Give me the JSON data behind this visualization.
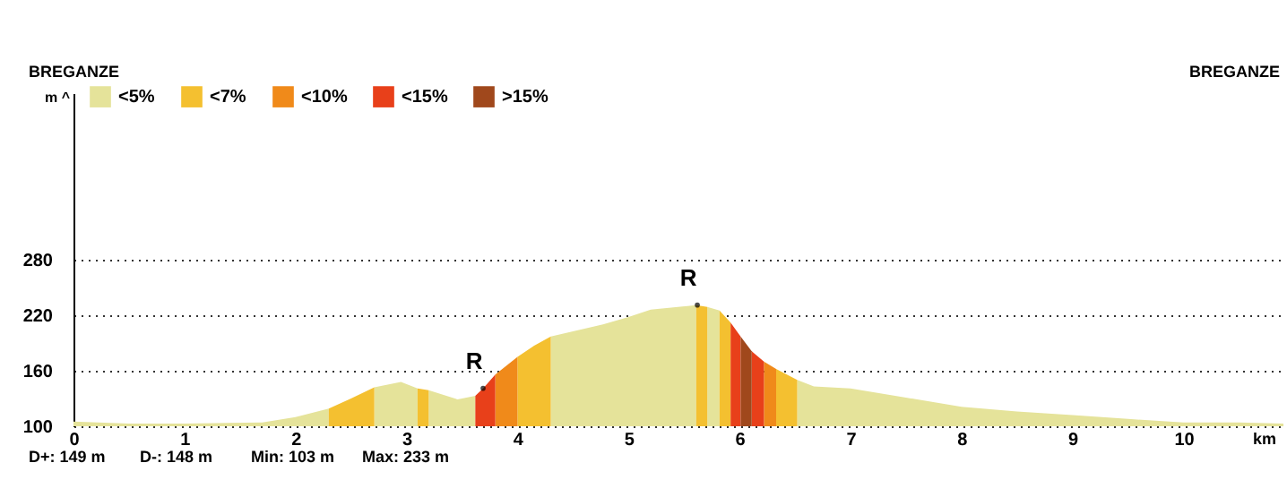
{
  "chart_data": {
    "type": "area",
    "title": "BREGANZE",
    "xlabel": "km",
    "ylabel": "m ^",
    "xlim": [
      0,
      10.9
    ],
    "xticks": [
      0,
      1,
      2,
      3,
      4,
      5,
      6,
      7,
      8,
      9,
      10
    ],
    "ylim": [
      100,
      460
    ],
    "yticks": [
      100,
      160,
      220,
      280
    ],
    "grid": "y",
    "legend": "top left",
    "series": [
      {
        "name": "<5%",
        "color": "#e5e39a",
        "x": [
          0,
          0.5,
          1,
          1.7,
          2.0,
          2.3,
          2.5,
          2.71,
          2.95,
          3.1,
          3.15,
          3.2,
          3.46,
          3.62,
          4.0,
          4.3,
          4.77,
          5.0,
          5.2,
          5.61,
          5.66,
          5.71,
          5.82,
          6.2,
          6.52,
          6.67,
          7,
          7.5,
          8,
          8.5,
          9,
          9.5,
          10,
          10.5,
          10.9
        ],
        "values": [
          105,
          103,
          103,
          104,
          110,
          119,
          null,
          142,
          148,
          141,
          null,
          139,
          129,
          133,
          null,
          197,
          210,
          218,
          226,
          231,
          null,
          229,
          225,
          null,
          150,
          143,
          141,
          131,
          121,
          116,
          112,
          108,
          104,
          104,
          103
        ]
      },
      {
        "name": "<7%",
        "color": "#f4c030",
        "x": [
          2.3,
          2.5,
          2.71,
          2.9,
          3.1,
          3.2,
          3.6,
          4.0,
          4.15,
          4.3,
          5.0,
          5.61,
          5.71,
          5.76,
          5.82,
          5.92,
          6.1,
          6.33,
          6.52
        ],
        "values": [
          119,
          130,
          142,
          null,
          141,
          139,
          null,
          175,
          187,
          197,
          null,
          231,
          229,
          null,
          225,
          212,
          null,
          162,
          150
        ]
      },
      {
        "name": "<10%",
        "color": "#f08a1a",
        "x": [
          3.8,
          4.0,
          5.0,
          6.22,
          6.33
        ],
        "values": [
          156,
          175,
          null,
          170,
          162
        ]
      },
      {
        "name": "<15%",
        "color": "#e8401a",
        "x": [
          3.62,
          3.69,
          3.8,
          5.0,
          5.92,
          6.01,
          6.06,
          6.11,
          6.22
        ],
        "values": [
          133,
          141,
          156,
          null,
          212,
          197,
          null,
          181,
          170
        ]
      },
      {
        "name": ">15%",
        "color": "#a0481c",
        "x": [
          6.01,
          6.11
        ],
        "values": [
          197,
          181
        ]
      }
    ],
    "annotations": [
      {
        "text": "R",
        "x": 3.69,
        "y": 141
      },
      {
        "text": "R",
        "x": 5.62,
        "y": 231
      },
      "BREGANZE",
      "D+: 149 m",
      "D-: 148 m",
      "Min: 103 m",
      "Max: 233 m"
    ]
  }
}
